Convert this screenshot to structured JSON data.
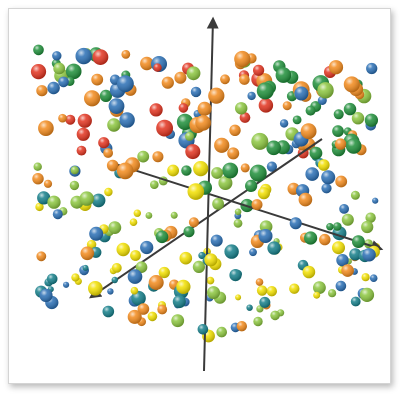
{
  "scene": {
    "description_colors": {
      "orange": "#f28a1c",
      "green": "#1f8f3a",
      "light_green": "#8cc63f",
      "yellow": "#f2e000",
      "blue": "#2a6fb5",
      "teal": "#157f8a",
      "red": "#e2331f"
    },
    "axis_color": "#3a3a3a"
  }
}
